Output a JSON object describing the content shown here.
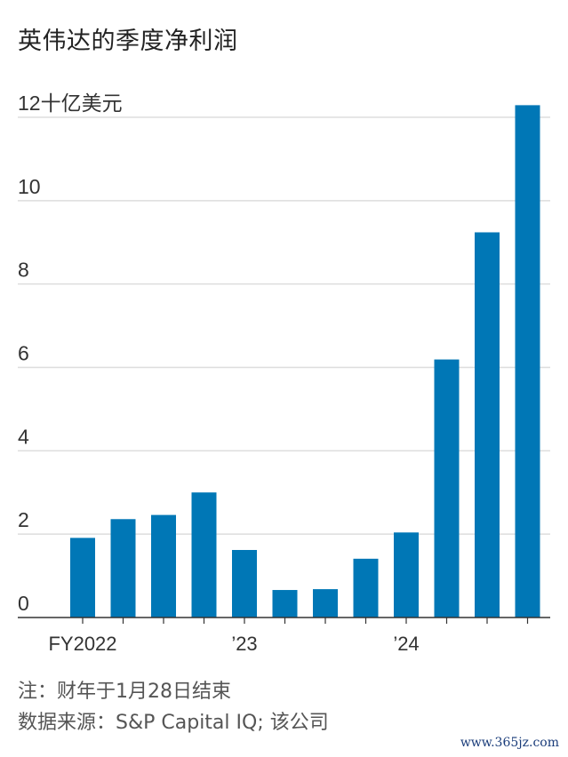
{
  "title": "英伟达的季度净利润",
  "chart_data": {
    "type": "bar",
    "title": "英伟达的季度净利润",
    "ylabel": "",
    "y_unit_label": "12十亿美元",
    "ylim": [
      0,
      12.3
    ],
    "yticks": [
      0,
      2,
      4,
      6,
      8,
      10,
      12
    ],
    "ytick_labels": [
      "0",
      "2",
      "4",
      "6",
      "8",
      "10",
      "12十亿美元"
    ],
    "x_tick_labels": [
      {
        "index": 0,
        "label": "FY2022"
      },
      {
        "index": 4,
        "label": "’23"
      },
      {
        "index": 8,
        "label": "’24"
      }
    ],
    "values": [
      1.91,
      2.36,
      2.46,
      3.0,
      1.62,
      0.66,
      0.68,
      1.41,
      2.04,
      6.19,
      9.24,
      12.29
    ],
    "bar_color": "#0077b6",
    "grid": true
  },
  "notes": {
    "note1": "注：财年于1月28日结束",
    "note2": "数据来源：S&P Capital IQ; 该公司"
  },
  "watermark": "www.365jz.com"
}
